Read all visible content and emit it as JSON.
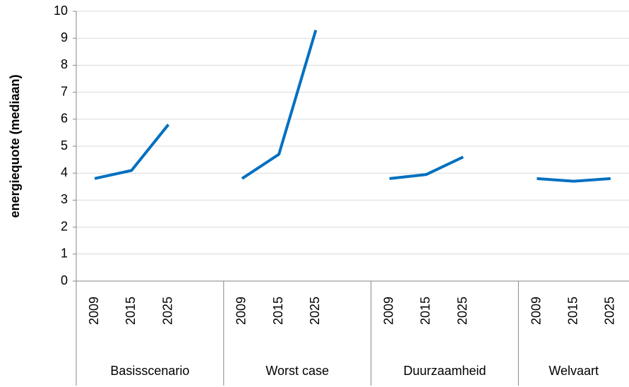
{
  "chart_data": {
    "type": "line",
    "y_label": "energiequote (mediaan)",
    "color": "#0070c0",
    "ylim": [
      0,
      10
    ],
    "yticks": [
      0,
      1,
      2,
      3,
      4,
      5,
      6,
      7,
      8,
      9,
      10
    ],
    "grid": true,
    "groups": [
      {
        "name": "Basisscenario",
        "categories": [
          "2009",
          "2015",
          "2025"
        ],
        "values": [
          3.8,
          4.1,
          5.8
        ]
      },
      {
        "name": "Worst case",
        "categories": [
          "2009",
          "2015",
          "2025"
        ],
        "values": [
          3.8,
          4.7,
          9.3
        ]
      },
      {
        "name": "Duurzaamheid",
        "categories": [
          "2009",
          "2015",
          "2025"
        ],
        "values": [
          3.8,
          3.95,
          4.6
        ]
      },
      {
        "name": "Welvaart",
        "categories": [
          "2009",
          "2015",
          "2025"
        ],
        "values": [
          3.8,
          3.7,
          3.8
        ]
      }
    ]
  }
}
